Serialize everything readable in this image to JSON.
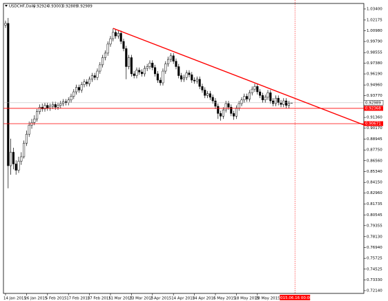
{
  "chart_data": {
    "type": "candlestick",
    "title": "USDCHF,Daily",
    "categories": [
      "14 Jan 2015",
      null,
      null,
      null,
      null,
      null,
      null,
      null,
      "26 Jan 2015",
      null,
      null,
      null,
      null,
      null,
      null,
      null,
      "5 Feb 2015",
      null,
      null,
      null,
      null,
      null,
      null,
      null,
      "17 Feb 2015",
      null,
      null,
      null,
      null,
      null,
      null,
      null,
      "27 Feb 2015",
      null,
      null,
      null,
      null,
      null,
      null,
      null,
      "11 Mar 2015",
      null,
      null,
      null,
      null,
      null,
      null,
      null,
      "23 Mar 2015",
      null,
      null,
      null,
      null,
      null,
      null,
      null,
      "2 Apr 2015",
      null,
      null,
      null,
      null,
      null,
      null,
      null,
      "14 Apr 2015",
      null,
      null,
      null,
      null,
      null,
      null,
      null,
      "24 Apr 2015",
      null,
      null,
      null,
      null,
      null,
      null,
      null,
      "6 May 2015",
      null,
      null,
      null,
      null,
      null,
      null,
      null,
      "18 May 2015",
      null,
      null,
      null,
      null,
      null,
      null,
      null,
      "28 May 2015",
      null,
      null,
      null,
      null,
      null,
      null,
      null,
      null,
      null,
      null,
      null,
      null,
      null
    ],
    "open": [
      1.016,
      1.018,
      0.86,
      0.875,
      0.862,
      0.855,
      0.865,
      0.87,
      0.885,
      0.895,
      0.905,
      0.908,
      0.912,
      0.92,
      0.925,
      0.923,
      0.927,
      0.924,
      0.926,
      0.928,
      0.925,
      0.927,
      0.929,
      0.931,
      0.93,
      0.933,
      0.937,
      0.942,
      0.947,
      0.944,
      0.95,
      0.953,
      0.951,
      0.956,
      0.96,
      0.958,
      0.965,
      0.972,
      0.98,
      0.985,
      0.995,
      1.001,
      1.008,
      1.004,
      1.007,
      0.998,
      0.99,
      0.97,
      0.98,
      0.962,
      0.96,
      0.966,
      0.964,
      0.962,
      0.968,
      0.97,
      0.974,
      0.969,
      0.962,
      0.955,
      0.952,
      0.965,
      0.973,
      0.978,
      0.982,
      0.976,
      0.97,
      0.96,
      0.956,
      0.958,
      0.963,
      0.961,
      0.955,
      0.954,
      0.956,
      0.948,
      0.944,
      0.938,
      0.94,
      0.936,
      0.932,
      0.926,
      0.918,
      0.915,
      0.922,
      0.929,
      0.925,
      0.918,
      0.915,
      0.924,
      0.929,
      0.933,
      0.937,
      0.934,
      0.941,
      0.945,
      0.948,
      0.942,
      0.938,
      0.933,
      0.936,
      0.941,
      0.932,
      0.929,
      0.935,
      0.93,
      0.928,
      0.932,
      0.927,
      0.92924
    ],
    "high": [
      1.021,
      1.024,
      0.89,
      0.88,
      0.866,
      0.87,
      0.875,
      0.888,
      0.899,
      0.909,
      0.912,
      0.916,
      0.923,
      0.928,
      0.929,
      0.93,
      0.93,
      0.929,
      0.931,
      0.931,
      0.93,
      0.932,
      0.934,
      0.934,
      0.936,
      0.94,
      0.945,
      0.95,
      0.95,
      0.953,
      0.956,
      0.956,
      0.959,
      0.963,
      0.963,
      0.968,
      0.975,
      0.983,
      0.988,
      0.998,
      1.004,
      1.0125,
      1.011,
      1.01,
      1.01,
      1.001,
      0.993,
      0.983,
      0.983,
      0.965,
      0.969,
      0.969,
      0.967,
      0.971,
      0.973,
      0.977,
      0.977,
      0.972,
      0.965,
      0.958,
      0.968,
      0.976,
      0.981,
      0.985,
      0.985,
      0.979,
      0.973,
      0.963,
      0.961,
      0.966,
      0.966,
      0.964,
      0.958,
      0.959,
      0.959,
      0.951,
      0.947,
      0.943,
      0.943,
      0.939,
      0.935,
      0.929,
      0.921,
      0.925,
      0.932,
      0.932,
      0.928,
      0.921,
      0.927,
      0.932,
      0.936,
      0.94,
      0.94,
      0.944,
      0.948,
      0.951,
      0.951,
      0.945,
      0.941,
      0.939,
      0.944,
      0.944,
      0.935,
      0.938,
      0.938,
      0.933,
      0.935,
      0.935,
      0.932,
      0.93003
    ],
    "low": [
      1.013,
      0.835,
      0.85,
      0.856,
      0.85,
      0.852,
      0.861,
      0.868,
      0.882,
      0.892,
      0.901,
      0.905,
      0.909,
      0.917,
      0.92,
      0.92,
      0.921,
      0.921,
      0.923,
      0.922,
      0.922,
      0.924,
      0.926,
      0.927,
      0.927,
      0.93,
      0.934,
      0.939,
      0.941,
      0.941,
      0.947,
      0.948,
      0.948,
      0.953,
      0.955,
      0.955,
      0.962,
      0.969,
      0.977,
      0.982,
      0.992,
      0.998,
      1.001,
      1.001,
      0.995,
      0.987,
      0.956,
      0.967,
      0.959,
      0.957,
      0.957,
      0.961,
      0.959,
      0.959,
      0.965,
      0.967,
      0.966,
      0.959,
      0.952,
      0.949,
      0.949,
      0.962,
      0.97,
      0.975,
      0.973,
      0.967,
      0.957,
      0.953,
      0.953,
      0.955,
      0.958,
      0.952,
      0.951,
      0.951,
      0.945,
      0.941,
      0.935,
      0.935,
      0.933,
      0.929,
      0.923,
      0.912,
      0.91,
      0.912,
      0.919,
      0.922,
      0.915,
      0.911,
      0.912,
      0.921,
      0.926,
      0.93,
      0.931,
      0.931,
      0.938,
      0.942,
      0.939,
      0.935,
      0.93,
      0.93,
      0.933,
      0.929,
      0.926,
      0.926,
      0.927,
      0.925,
      0.925,
      0.924,
      0.924,
      0.92889
    ],
    "close": [
      1.018,
      0.86,
      0.875,
      0.862,
      0.855,
      0.865,
      0.87,
      0.885,
      0.895,
      0.905,
      0.908,
      0.912,
      0.92,
      0.925,
      0.923,
      0.927,
      0.924,
      0.926,
      0.928,
      0.925,
      0.927,
      0.929,
      0.931,
      0.93,
      0.933,
      0.937,
      0.942,
      0.947,
      0.944,
      0.95,
      0.953,
      0.951,
      0.956,
      0.96,
      0.958,
      0.965,
      0.972,
      0.98,
      0.985,
      0.995,
      1.001,
      1.008,
      1.004,
      1.007,
      0.998,
      0.99,
      0.97,
      0.98,
      0.962,
      0.96,
      0.966,
      0.964,
      0.962,
      0.968,
      0.97,
      0.974,
      0.969,
      0.962,
      0.955,
      0.952,
      0.965,
      0.973,
      0.978,
      0.982,
      0.976,
      0.97,
      0.96,
      0.956,
      0.958,
      0.963,
      0.961,
      0.955,
      0.954,
      0.956,
      0.948,
      0.944,
      0.938,
      0.94,
      0.936,
      0.932,
      0.926,
      0.918,
      0.915,
      0.922,
      0.929,
      0.925,
      0.918,
      0.915,
      0.924,
      0.929,
      0.933,
      0.937,
      0.934,
      0.941,
      0.945,
      0.948,
      0.942,
      0.938,
      0.933,
      0.936,
      0.941,
      0.932,
      0.929,
      0.935,
      0.93,
      0.928,
      0.932,
      0.927,
      0.9292,
      0.92989
    ],
    "ylim": [
      0.7183,
      1.0401
    ],
    "yticks": [
      {
        "value": 1.034,
        "label": "1.03400"
      },
      {
        "value": 1.02175,
        "label": "1.02175"
      },
      {
        "value": 1.0098,
        "label": "1.00980"
      },
      {
        "value": 0.9979,
        "label": "0.99790"
      },
      {
        "value": 0.98555,
        "label": "0.98555"
      },
      {
        "value": 0.9738,
        "label": "0.97380"
      },
      {
        "value": 0.9619,
        "label": "0.96190"
      },
      {
        "value": 0.9496,
        "label": "0.94960"
      },
      {
        "value": 0.9377,
        "label": "0.93770"
      },
      {
        "value": 0.9136,
        "label": "0.91360"
      },
      {
        "value": 0.9017,
        "label": "0.90170"
      },
      {
        "value": 0.88945,
        "label": "0.88945"
      },
      {
        "value": 0.8775,
        "label": "0.87750"
      },
      {
        "value": 0.8656,
        "label": "0.86560"
      },
      {
        "value": 0.8534,
        "label": "0.85340"
      },
      {
        "value": 0.8415,
        "label": "0.84150"
      },
      {
        "value": 0.8296,
        "label": "0.82960"
      },
      {
        "value": 0.81735,
        "label": "0.81735"
      },
      {
        "value": 0.80545,
        "label": "0.80545"
      },
      {
        "value": 0.79355,
        "label": "0.79355"
      },
      {
        "value": 0.7813,
        "label": "0.78130"
      },
      {
        "value": 0.7694,
        "label": "0.76940"
      },
      {
        "value": 0.75725,
        "label": "0.75725"
      },
      {
        "value": 0.74525,
        "label": "0.74525"
      },
      {
        "value": 0.7333,
        "label": "0.73330"
      },
      {
        "value": 0.7214,
        "label": "0.72140"
      }
    ],
    "levels": [
      0.92368,
      0.90671
    ],
    "level_color": "#ff0000",
    "trendline": {
      "start": [
        41,
        1.0125
      ],
      "end": [
        136.6,
        0.9053
      ],
      "color": "#ff0000"
    },
    "cursor_label": "2015.06.16 00:00",
    "bull_color": "#ffffff",
    "bear_color": "#000000"
  }
}
